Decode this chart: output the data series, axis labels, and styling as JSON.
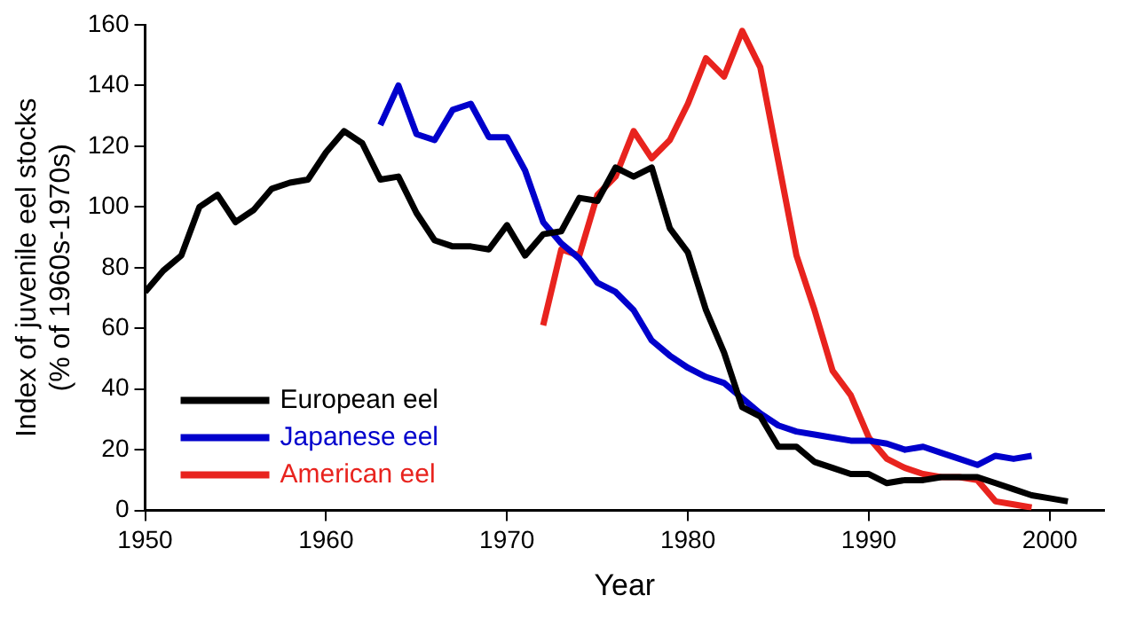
{
  "chart_data": {
    "type": "line",
    "xlabel": "Year",
    "ylabel": "Index of juvenile eel stocks\n(% of 1960s-1970s)",
    "xlim": [
      1950,
      2003
    ],
    "xticks": [
      1950,
      1960,
      1970,
      1980,
      1990,
      2000
    ],
    "ylim": [
      0,
      160
    ],
    "yticks": [
      0,
      20,
      40,
      60,
      80,
      100,
      120,
      140,
      160
    ],
    "grid": false,
    "legend": "bottom left",
    "marker": "none",
    "line_style": "solid",
    "series": [
      {
        "name": "European eel",
        "color": "#000000",
        "x": [
          1950,
          1951,
          1952,
          1953,
          1954,
          1955,
          1956,
          1957,
          1958,
          1959,
          1960,
          1961,
          1962,
          1963,
          1964,
          1965,
          1966,
          1967,
          1968,
          1969,
          1970,
          1971,
          1972,
          1973,
          1974,
          1975,
          1976,
          1977,
          1978,
          1979,
          1980,
          1981,
          1982,
          1983,
          1984,
          1985,
          1986,
          1987,
          1988,
          1989,
          1990,
          1991,
          1992,
          1993,
          1994,
          1995,
          1996,
          1997,
          1998,
          1999,
          2000,
          2001
        ],
        "values": [
          72,
          79,
          84,
          100,
          104,
          95,
          99,
          106,
          108,
          109,
          118,
          125,
          121,
          109,
          110,
          98,
          89,
          87,
          87,
          86,
          94,
          84,
          91,
          92,
          103,
          102,
          113,
          110,
          113,
          93,
          85,
          66,
          52,
          34,
          31,
          21,
          21,
          16,
          14,
          12,
          12,
          9,
          10,
          10,
          11,
          11,
          11,
          9,
          7,
          5,
          4,
          3
        ]
      },
      {
        "name": "Japanese eel",
        "color": "#0000cc",
        "x": [
          1963,
          1964,
          1965,
          1966,
          1967,
          1968,
          1969,
          1970,
          1971,
          1972,
          1973,
          1974,
          1975,
          1976,
          1977,
          1978,
          1979,
          1980,
          1981,
          1982,
          1983,
          1984,
          1985,
          1986,
          1987,
          1988,
          1989,
          1990,
          1991,
          1992,
          1993,
          1994,
          1995,
          1996,
          1997,
          1998,
          1999
        ],
        "values": [
          127,
          140,
          124,
          122,
          132,
          134,
          123,
          123,
          112,
          95,
          88,
          83,
          75,
          72,
          66,
          56,
          51,
          47,
          44,
          42,
          37,
          32,
          28,
          26,
          25,
          24,
          23,
          23,
          22,
          20,
          21,
          19,
          17,
          15,
          18,
          17,
          18
        ]
      },
      {
        "name": "American eel",
        "color": "#e8231e",
        "x": [
          1972,
          1973,
          1974,
          1975,
          1976,
          1977,
          1978,
          1979,
          1980,
          1981,
          1982,
          1983,
          1984,
          1985,
          1986,
          1987,
          1988,
          1989,
          1990,
          1991,
          1992,
          1993,
          1994,
          1995,
          1996,
          1997,
          1998,
          1999
        ],
        "values": [
          61,
          86,
          84,
          104,
          110,
          125,
          116,
          122,
          134,
          149,
          143,
          158,
          146,
          115,
          84,
          66,
          46,
          38,
          24,
          17,
          14,
          12,
          11,
          11,
          10,
          3,
          2,
          1
        ]
      }
    ]
  }
}
